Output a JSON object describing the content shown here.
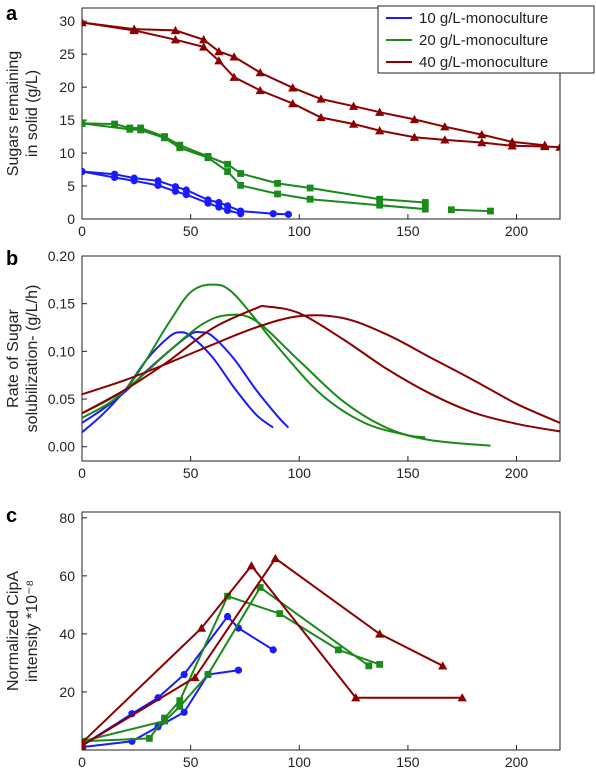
{
  "colors": {
    "10 g/L-monoculture": "#1a1aff",
    "20 g/L-monoculture": "#1a8a1a",
    "40 g/L-monoculture": "#8b0000"
  },
  "legend": [
    "10 g/L-monoculture",
    "20 g/L-monoculture",
    "40 g/L-monoculture"
  ],
  "legend_placement": "top-right",
  "xlabel": "Time (h)",
  "chart_data": [
    {
      "panel": "a",
      "type": "line",
      "xlim": [
        0,
        220
      ],
      "ylim": [
        0,
        32
      ],
      "xticks": [
        0,
        50,
        100,
        150,
        200
      ],
      "yticks": [
        0,
        5,
        10,
        15,
        20,
        25,
        30
      ],
      "ylabel_lines": [
        "Sugars remaining",
        "in solid (g/L)"
      ],
      "xlabel": "",
      "series": [
        {
          "name": "10 g/L-monoculture",
          "marker": "circle",
          "x": [
            0,
            15,
            24,
            35,
            43,
            48,
            58,
            63,
            67,
            73,
            88,
            95
          ],
          "y": [
            7.2,
            6.8,
            6.2,
            5.8,
            4.9,
            4.4,
            2.9,
            2.5,
            2.0,
            1.2,
            0.8,
            0.7
          ]
        },
        {
          "name": "10 g/L-monoculture",
          "marker": "circle",
          "x": [
            0,
            15,
            24,
            35,
            43,
            48,
            58,
            63,
            67,
            73
          ],
          "y": [
            7.2,
            6.3,
            5.8,
            5.1,
            4.2,
            3.7,
            2.4,
            1.8,
            1.3,
            0.8
          ]
        },
        {
          "name": "20 g/L-monoculture",
          "marker": "square",
          "x": [
            0,
            15,
            22,
            27,
            38,
            45,
            58,
            67,
            73,
            90,
            105,
            137,
            158
          ],
          "y": [
            14.5,
            14.4,
            13.8,
            13.8,
            12.5,
            11.2,
            9.5,
            8.3,
            6.9,
            5.4,
            4.7,
            3.0,
            2.5
          ]
        },
        {
          "name": "20 g/L-monoculture",
          "marker": "square",
          "x": [
            0,
            22,
            27,
            38,
            45,
            58,
            67,
            73,
            90,
            105,
            137,
            158
          ],
          "y": [
            14.5,
            13.6,
            13.5,
            12.3,
            10.8,
            9.3,
            7.2,
            5.1,
            3.8,
            3.0,
            2.1,
            1.5
          ]
        },
        {
          "name": "20 g/L-monoculture",
          "marker": "square",
          "x": [
            170,
            188
          ],
          "y": [
            1.4,
            1.2
          ]
        },
        {
          "name": "40 g/L-monoculture",
          "marker": "triangle",
          "x": [
            0,
            24,
            43,
            56,
            63,
            70,
            82,
            97,
            110,
            125,
            137,
            153,
            167,
            184,
            198,
            213
          ],
          "y": [
            29.8,
            28.8,
            28.6,
            27.2,
            25.4,
            24.6,
            22.2,
            19.9,
            18.2,
            17.1,
            16.2,
            15.1,
            14.0,
            12.8,
            11.7,
            11.2
          ]
        },
        {
          "name": "40 g/L-monoculture",
          "marker": "triangle",
          "x": [
            0,
            24,
            43,
            56,
            63,
            70,
            82,
            97,
            110,
            125,
            137,
            153,
            167,
            184,
            198,
            213,
            220
          ],
          "y": [
            29.8,
            28.6,
            27.2,
            26.1,
            24.0,
            21.5,
            19.5,
            17.5,
            15.4,
            14.4,
            13.4,
            12.4,
            12.0,
            11.6,
            11.1,
            11.0,
            10.9
          ]
        }
      ]
    },
    {
      "panel": "b",
      "type": "line",
      "xlim": [
        0,
        220
      ],
      "ylim": [
        -0.015,
        0.2
      ],
      "xticks": [
        0,
        50,
        100,
        150,
        200
      ],
      "yticks": [
        0.0,
        0.05,
        0.1,
        0.15,
        0.2
      ],
      "ytick_labels": [
        "0.00",
        "0.05",
        "0.10",
        "0.15",
        "0.20"
      ],
      "ylabel_lines": [
        "Rate of Sugar",
        "solubilization- (g/L/h)"
      ],
      "xlabel": "",
      "series": [
        {
          "name": "10 g/L-monoculture",
          "x": [
            0,
            10,
            20,
            30,
            40,
            45,
            50,
            60,
            70,
            80,
            88
          ],
          "y": [
            0.015,
            0.035,
            0.06,
            0.092,
            0.115,
            0.12,
            0.116,
            0.094,
            0.062,
            0.034,
            0.02
          ]
        },
        {
          "name": "10 g/L-monoculture",
          "x": [
            0,
            10,
            20,
            30,
            40,
            50,
            55,
            60,
            70,
            80,
            90,
            95
          ],
          "y": [
            0.025,
            0.04,
            0.058,
            0.08,
            0.1,
            0.118,
            0.12,
            0.116,
            0.092,
            0.06,
            0.032,
            0.02
          ]
        },
        {
          "name": "20 g/L-monoculture",
          "x": [
            0,
            20,
            40,
            50,
            60,
            70,
            90,
            110,
            130,
            150,
            158
          ],
          "y": [
            0.03,
            0.06,
            0.13,
            0.162,
            0.17,
            0.16,
            0.105,
            0.055,
            0.025,
            0.012,
            0.01
          ]
        },
        {
          "name": "20 g/L-monoculture",
          "x": [
            0,
            20,
            40,
            55,
            67,
            80,
            100,
            120,
            140,
            160,
            188
          ],
          "y": [
            0.035,
            0.06,
            0.1,
            0.128,
            0.138,
            0.132,
            0.09,
            0.048,
            0.02,
            0.007,
            0.001
          ]
        },
        {
          "name": "40 g/L-monoculture",
          "x": [
            0,
            20,
            40,
            60,
            80,
            85,
            100,
            120,
            140,
            160,
            180,
            200,
            220
          ],
          "y": [
            0.035,
            0.06,
            0.09,
            0.124,
            0.145,
            0.147,
            0.14,
            0.113,
            0.082,
            0.056,
            0.036,
            0.024,
            0.016
          ]
        },
        {
          "name": "40 g/L-monoculture",
          "x": [
            0,
            20,
            40,
            60,
            80,
            100,
            120,
            140,
            160,
            180,
            200,
            220
          ],
          "y": [
            0.055,
            0.07,
            0.088,
            0.107,
            0.125,
            0.137,
            0.135,
            0.118,
            0.094,
            0.07,
            0.045,
            0.025
          ]
        }
      ]
    },
    {
      "panel": "c",
      "type": "line",
      "xlim": [
        0,
        220
      ],
      "ylim": [
        0,
        82
      ],
      "xticks": [
        0,
        50,
        100,
        150,
        200
      ],
      "yticks": [
        20,
        40,
        60,
        80
      ],
      "ylabel_lines": [
        "Normalized CipA",
        "intensity *10⁻⁸"
      ],
      "xlabel": "Time (h)",
      "series": [
        {
          "name": "10 g/L-monoculture",
          "marker": "circle",
          "x": [
            0,
            23,
            35,
            47,
            67,
            72,
            88
          ],
          "y": [
            1.5,
            12.5,
            18,
            26,
            46,
            42,
            34.5
          ]
        },
        {
          "name": "10 g/L-monoculture",
          "marker": "circle",
          "x": [
            0,
            23,
            35,
            47,
            58,
            72
          ],
          "y": [
            1,
            3,
            8,
            13,
            26,
            27.5
          ]
        },
        {
          "name": "20 g/L-monoculture",
          "marker": "square",
          "x": [
            0,
            31,
            38,
            45,
            67,
            91,
            118,
            137
          ],
          "y": [
            3,
            4,
            11,
            17,
            53,
            47,
            34.5,
            29.5
          ]
        },
        {
          "name": "20 g/L-monoculture",
          "marker": "square",
          "x": [
            0,
            38,
            45,
            58,
            82,
            132
          ],
          "y": [
            3,
            10,
            15,
            26,
            56,
            29
          ]
        },
        {
          "name": "40 g/L-monoculture",
          "marker": "triangle",
          "x": [
            0,
            55,
            78,
            126,
            175
          ],
          "y": [
            2.5,
            42,
            63.5,
            18,
            18
          ]
        },
        {
          "name": "40 g/L-monoculture",
          "marker": "triangle",
          "x": [
            0,
            52,
            89,
            137,
            166
          ],
          "y": [
            1.5,
            25,
            66,
            40,
            29
          ]
        }
      ]
    }
  ]
}
